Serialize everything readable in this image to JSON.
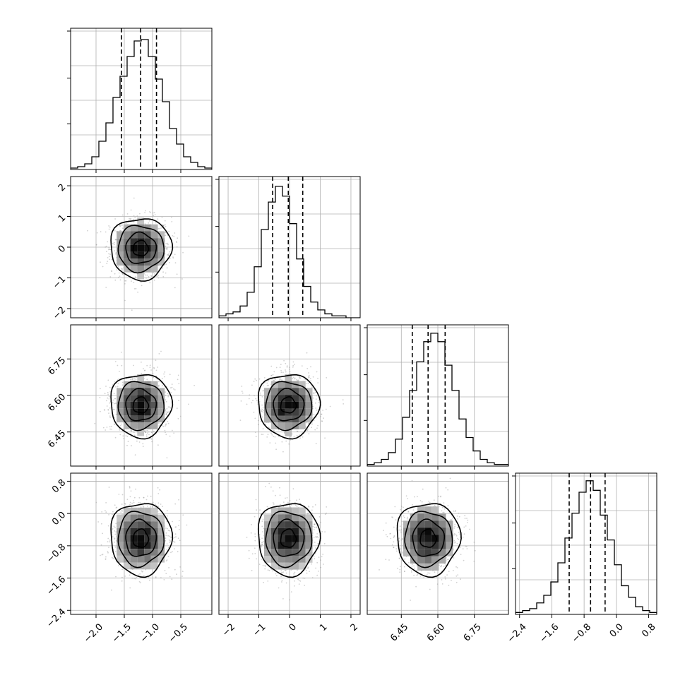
{
  "chart_data": {
    "type": "corner",
    "grid": true,
    "parameters": [
      {
        "range": [
          -2.45,
          0.05
        ],
        "mean": -1.21,
        "sd": 0.27,
        "quantiles": [
          -1.55,
          -1.21,
          -0.93
        ],
        "ticks": [
          -2.0,
          -1.5,
          -1.0,
          -0.5
        ],
        "tick_labels": [
          "−2.0",
          "−1.5",
          "−1.0",
          "−0.5"
        ]
      },
      {
        "range": [
          -2.3,
          2.3
        ],
        "mean": -0.04,
        "sd": 0.5,
        "quantiles": [
          -0.55,
          -0.04,
          0.43
        ],
        "ticks": [
          -2,
          -1,
          0,
          1,
          2
        ],
        "tick_labels": [
          "−2",
          "−1",
          "0",
          "1",
          "2"
        ]
      },
      {
        "range": [
          6.31,
          6.89
        ],
        "mean": 6.56,
        "sd": 0.065,
        "quantiles": [
          6.495,
          6.56,
          6.63
        ],
        "ticks": [
          6.45,
          6.6,
          6.75
        ],
        "tick_labels": [
          "6.45",
          "6.60",
          "6.75"
        ]
      },
      {
        "range": [
          -2.5,
          1.0
        ],
        "mean": -0.62,
        "sd": 0.45,
        "quantiles": [
          -1.17,
          -0.64,
          -0.28
        ],
        "ticks": [
          -2.4,
          -1.6,
          -0.8,
          0.0,
          0.8
        ],
        "tick_labels": [
          "−2.4",
          "−1.6",
          "−0.8",
          "0.0",
          "0.8"
        ]
      }
    ],
    "histograms": [
      {
        "counts": [
          1,
          2,
          4,
          9,
          20,
          33,
          51,
          66,
          80,
          91,
          92,
          80,
          64,
          48,
          29,
          18,
          9,
          5,
          2,
          1
        ]
      },
      {
        "counts": [
          1,
          2,
          3,
          6,
          13,
          26,
          45,
          59,
          67,
          62,
          48,
          30,
          16,
          8,
          4,
          2,
          1,
          1,
          0,
          0
        ]
      },
      {
        "counts": [
          1,
          2,
          4,
          8,
          16,
          29,
          45,
          62,
          74,
          79,
          74,
          60,
          45,
          28,
          17,
          9,
          4,
          2,
          1,
          1
        ]
      },
      {
        "counts": [
          1,
          2,
          3,
          6,
          10,
          17,
          27,
          40,
          53,
          64,
          70,
          65,
          52,
          39,
          26,
          15,
          9,
          4,
          2,
          1
        ]
      }
    ],
    "hist_ymax": [
      100,
      72,
      84,
      74
    ]
  }
}
